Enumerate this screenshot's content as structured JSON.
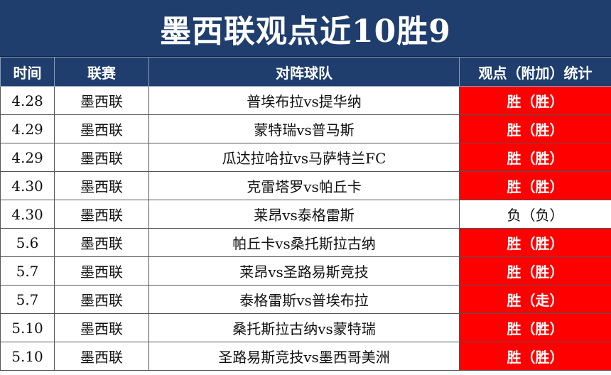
{
  "title": "墨西联观点近10胜9",
  "headers": [
    "时间",
    "联赛",
    "对阵球队",
    "观点（附加）统计"
  ],
  "colors": {
    "header_bg": "#1f3e6e",
    "win_bg": "#ff0000",
    "lose_bg": "#ffffff"
  },
  "rows": [
    {
      "date": "4.28",
      "league": "墨西联",
      "match": "普埃布拉vs提华纳",
      "result": "胜（胜）",
      "win": true
    },
    {
      "date": "4.29",
      "league": "墨西联",
      "match": "蒙特瑞vs普马斯",
      "result": "胜（胜）",
      "win": true
    },
    {
      "date": "4.29",
      "league": "墨西联",
      "match": "瓜达拉哈拉vs马萨特兰FC",
      "result": "胜（胜）",
      "win": true
    },
    {
      "date": "4.30",
      "league": "墨西联",
      "match": "克雷塔罗vs帕丘卡",
      "result": "胜（胜）",
      "win": true
    },
    {
      "date": "4.30",
      "league": "墨西联",
      "match": "莱昂vs泰格雷斯",
      "result": "负（负）",
      "win": false
    },
    {
      "date": "5.6",
      "league": "墨西联",
      "match": "帕丘卡vs桑托斯拉古纳",
      "result": "胜（胜）",
      "win": true
    },
    {
      "date": "5.7",
      "league": "墨西联",
      "match": "莱昂vs圣路易斯竞技",
      "result": "胜（胜）",
      "win": true
    },
    {
      "date": "5.7",
      "league": "墨西联",
      "match": "泰格雷斯vs普埃布拉",
      "result": "胜（走）",
      "win": true
    },
    {
      "date": "5.10",
      "league": "墨西联",
      "match": "桑托斯拉古纳vs蒙特瑞",
      "result": "胜（胜）",
      "win": true
    },
    {
      "date": "5.10",
      "league": "墨西联",
      "match": "圣路易斯竞技vs墨西哥美洲",
      "result": "胜（胜）",
      "win": true
    }
  ]
}
